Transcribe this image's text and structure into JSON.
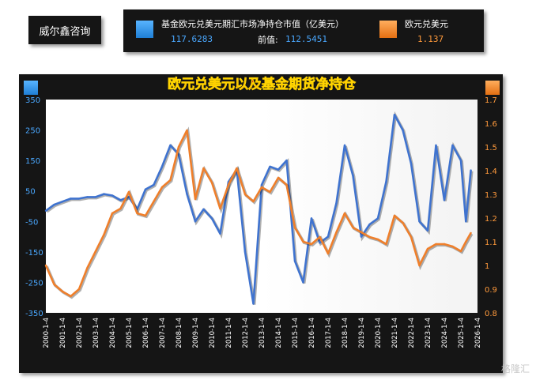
{
  "brand": {
    "name": "威尔鑫咨询"
  },
  "legend": {
    "series1_name": "基金欧元兑美元期汇市场净持仓市值（亿美元）",
    "series1_value": "117.6283",
    "prev_label": "前值:",
    "prev_value": "112.5451",
    "series2_name": "欧元兑美元",
    "series2_value": "1.137"
  },
  "watermark": "格隆汇",
  "colors": {
    "blue": "#3f73cf",
    "orange": "#ef7f2b",
    "title": "#e8281e"
  },
  "chart_data": {
    "type": "line",
    "title": "欧元兑美元以及基金期货净持仓",
    "x_tick_labels": [
      "2000-1-4",
      "2001-1-4",
      "2002-1-4",
      "2003-1-4",
      "2004-1-4",
      "2005-1-4",
      "2006-1-4",
      "2007-1-4",
      "2008-1-4",
      "2009-1-4",
      "2010-1-4",
      "2011-1-4",
      "2012-1-4",
      "2013-1-4",
      "2014-1-4",
      "2015-1-4",
      "2016-1-4",
      "2017-1-4",
      "2018-1-4",
      "2019-1-4",
      "2020-1-4",
      "2021-1-4",
      "2022-1-4",
      "2023-1-4",
      "2024-1-4",
      "2025-1-4",
      "2026-1-4"
    ],
    "left_axis": {
      "ylim": [
        -350,
        350
      ],
      "ticks": [
        350,
        250,
        150,
        50,
        -50,
        -150,
        -250,
        -350
      ]
    },
    "right_axis": {
      "ylim": [
        0.8,
        1.7
      ],
      "ticks": [
        1.7,
        1.6,
        1.5,
        1.4,
        1.3,
        1.2,
        1.1,
        1,
        0.9,
        0.8
      ]
    },
    "grid": false,
    "x": [
      2000.0,
      2000.5,
      2001.0,
      2001.5,
      2002.0,
      2002.5,
      2003.0,
      2003.5,
      2004.0,
      2004.5,
      2005.0,
      2005.5,
      2006.0,
      2006.5,
      2007.0,
      2007.5,
      2008.0,
      2008.5,
      2009.0,
      2009.5,
      2010.0,
      2010.5,
      2011.0,
      2011.5,
      2012.0,
      2012.5,
      2013.0,
      2013.5,
      2014.0,
      2014.5,
      2015.0,
      2015.5,
      2016.0,
      2016.5,
      2017.0,
      2017.5,
      2018.0,
      2018.5,
      2019.0,
      2019.5,
      2020.0,
      2020.5,
      2021.0,
      2021.5,
      2022.0,
      2022.5,
      2023.0,
      2023.5,
      2024.0,
      2024.5,
      2025.0,
      2025.3,
      2025.6
    ],
    "series": [
      {
        "name": "基金欧元兑美元期汇市场净持仓市值（亿美元）",
        "axis": "left",
        "values": [
          -15,
          5,
          15,
          25,
          25,
          30,
          30,
          40,
          35,
          20,
          30,
          -10,
          55,
          70,
          130,
          200,
          170,
          40,
          -50,
          -10,
          -40,
          -90,
          80,
          120,
          -150,
          -320,
          70,
          130,
          120,
          150,
          -180,
          -250,
          -40,
          -120,
          -100,
          10,
          200,
          100,
          -100,
          -60,
          -40,
          80,
          300,
          250,
          140,
          -50,
          -80,
          200,
          20,
          200,
          150,
          -50,
          117.6
        ]
      },
      {
        "name": "欧元兑美元",
        "axis": "right",
        "values": [
          1.0,
          0.92,
          0.89,
          0.87,
          0.9,
          0.99,
          1.06,
          1.13,
          1.22,
          1.24,
          1.31,
          1.22,
          1.21,
          1.27,
          1.33,
          1.36,
          1.5,
          1.57,
          1.28,
          1.41,
          1.35,
          1.24,
          1.34,
          1.41,
          1.3,
          1.27,
          1.33,
          1.31,
          1.37,
          1.34,
          1.16,
          1.1,
          1.09,
          1.12,
          1.05,
          1.14,
          1.22,
          1.16,
          1.14,
          1.12,
          1.11,
          1.09,
          1.21,
          1.18,
          1.12,
          1.0,
          1.07,
          1.09,
          1.09,
          1.08,
          1.06,
          1.1,
          1.137
        ]
      }
    ]
  }
}
